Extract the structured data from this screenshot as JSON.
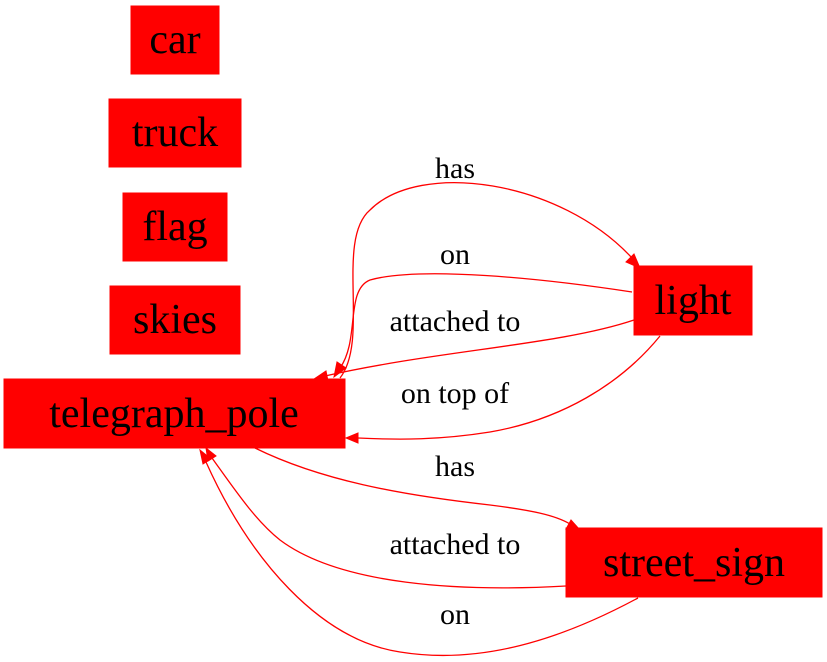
{
  "colors": {
    "node_fill": "#ff0000",
    "edge": "#ff0000",
    "text": "#000000",
    "background": "#ffffff"
  },
  "nodes": {
    "car": "car",
    "truck": "truck",
    "flag": "flag",
    "skies": "skies",
    "telegraph_pole": "telegraph_pole",
    "light": "light",
    "street_sign": "street_sign"
  },
  "edges": {
    "pole_has_light": "has",
    "light_on_pole": "on",
    "light_attached_pole": "attached to",
    "light_ontop_pole": "on top of",
    "pole_has_sign": "has",
    "sign_attached_pole": "attached to",
    "sign_on_pole": "on"
  }
}
